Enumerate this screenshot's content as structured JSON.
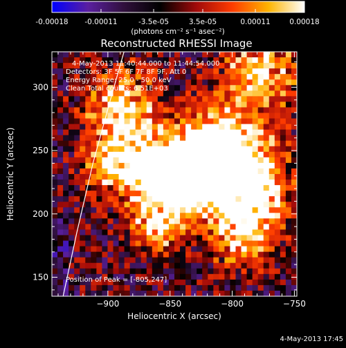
{
  "chart_data": {
    "type": "heatmap",
    "title": "Reconstructed RHESSI Image",
    "xlabel": "Heliocentric X (arcsec)",
    "ylabel": "Heliocentric Y (arcsec)",
    "xlim": [
      -945,
      -748
    ],
    "ylim": [
      135,
      328
    ],
    "x_ticks": [
      -900,
      -850,
      -800,
      -750
    ],
    "y_ticks": [
      150,
      200,
      250,
      300
    ],
    "colorbar": {
      "ticks": [
        -0.00018,
        -0.00011,
        -3.5e-05,
        3.5e-05,
        0.00011,
        0.00018
      ],
      "tick_labels": [
        "-0.00018",
        "-0.00011",
        "-3.5e-05",
        "3.5e-05",
        "0.00011",
        "0.00018"
      ],
      "range": [
        -0.00018,
        0.00018
      ],
      "units_label": "(photons cm⁻² s⁻¹ asec⁻²)",
      "colormap": [
        "#0000ff",
        "#5a1fa0",
        "#30103c",
        "#000000",
        "#a00a0a",
        "#ff3c00",
        "#ffb400",
        "#ffffff"
      ]
    },
    "annotations": {
      "time_range": "4-May-2013 11:40:44.000 to 11:44:54.000",
      "detectors": "Detectors: 3F 5F 6F 7F 8F 9F, Att 0",
      "energy": "Energy Range: 25.0 - 50.0 keV",
      "clean": "Clean    Total counts: 6.51E+03",
      "peak": "Position of Peak = [-805,247]"
    },
    "peak_position": [
      -805,
      247
    ],
    "limb": [
      [
        -936,
        135
      ],
      [
        -925,
        185
      ],
      [
        -912,
        240
      ],
      [
        -898,
        290
      ],
      [
        -887,
        328
      ]
    ],
    "timestamp": "4-May-2013 17:45"
  }
}
